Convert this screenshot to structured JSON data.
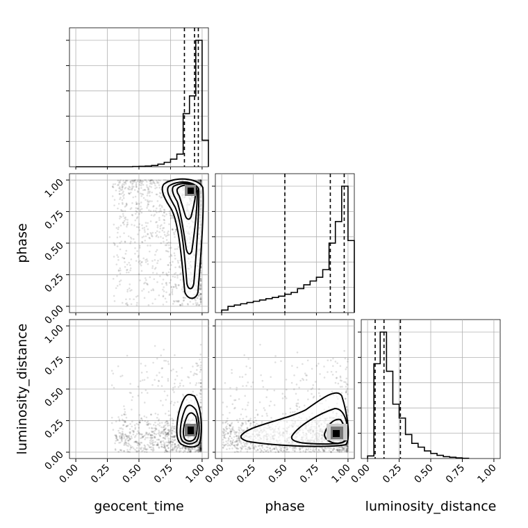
{
  "chart_data": {
    "type": "corner",
    "parameters": [
      {
        "key": "geocent_time",
        "label": "geocent_time"
      },
      {
        "key": "phase",
        "label": "phase"
      },
      {
        "key": "luminosity_distance",
        "label": "luminosity_distance"
      }
    ],
    "ticks": {
      "values": [
        0.0,
        0.25,
        0.5,
        0.75,
        1.0
      ],
      "labels": [
        "0.00",
        "0.25",
        "0.50",
        "0.75",
        "1.00"
      ]
    },
    "axis_ranges": {
      "geocent_time": [
        -0.05,
        1.05
      ],
      "phase": [
        -0.05,
        1.05
      ],
      "luminosity_distance": [
        -0.05,
        1.05
      ]
    },
    "grid": true,
    "marginals": {
      "geocent_time": {
        "bin_edges": [
          0.0,
          0.05,
          0.1,
          0.15,
          0.2,
          0.25,
          0.3,
          0.35,
          0.4,
          0.45,
          0.5,
          0.55,
          0.6,
          0.65,
          0.7,
          0.75,
          0.8,
          0.85,
          0.9,
          0.95,
          1.0,
          1.05
        ],
        "counts": [
          0,
          0,
          0,
          0,
          0,
          0,
          0,
          0,
          0,
          0.002,
          0.003,
          0.005,
          0.01,
          0.02,
          0.035,
          0.06,
          0.1,
          0.42,
          0.56,
          1.0,
          0.21
        ],
        "quantiles": [
          0.86,
          0.94,
          0.97
        ]
      },
      "phase": {
        "bin_edges": [
          0.0,
          0.05,
          0.1,
          0.15,
          0.2,
          0.25,
          0.3,
          0.35,
          0.4,
          0.45,
          0.5,
          0.55,
          0.6,
          0.65,
          0.7,
          0.75,
          0.8,
          0.85,
          0.9,
          0.95,
          1.0,
          1.05
        ],
        "counts": [
          0.02,
          0.05,
          0.06,
          0.07,
          0.08,
          0.09,
          0.1,
          0.11,
          0.12,
          0.13,
          0.145,
          0.16,
          0.19,
          0.22,
          0.25,
          0.28,
          0.34,
          0.55,
          0.72,
          1.0,
          0.57
        ],
        "quantiles": [
          0.5,
          0.86,
          0.97
        ]
      },
      "luminosity_distance": {
        "bin_edges": [
          0.0,
          0.05,
          0.1,
          0.15,
          0.2,
          0.25,
          0.3,
          0.35,
          0.4,
          0.45,
          0.5,
          0.55,
          0.6,
          0.65,
          0.7,
          0.75,
          0.8
        ],
        "counts": [
          0.02,
          0.75,
          1.0,
          0.69,
          0.43,
          0.32,
          0.19,
          0.12,
          0.09,
          0.06,
          0.04,
          0.025,
          0.015,
          0.01,
          0.005,
          0.002
        ],
        "quantiles": [
          0.06,
          0.13,
          0.26
        ]
      }
    },
    "density_peaks": [
      {
        "x": "geocent_time",
        "y": "phase",
        "peak": [
          0.95,
          0.95
        ]
      },
      {
        "x": "geocent_time",
        "y": "luminosity_distance",
        "peak": [
          0.95,
          0.12
        ]
      },
      {
        "x": "phase",
        "y": "luminosity_distance",
        "peak": [
          0.95,
          0.12
        ]
      }
    ],
    "colors": {
      "line": "#000000",
      "points": "#000000",
      "grid": "#b0b0b0"
    }
  }
}
